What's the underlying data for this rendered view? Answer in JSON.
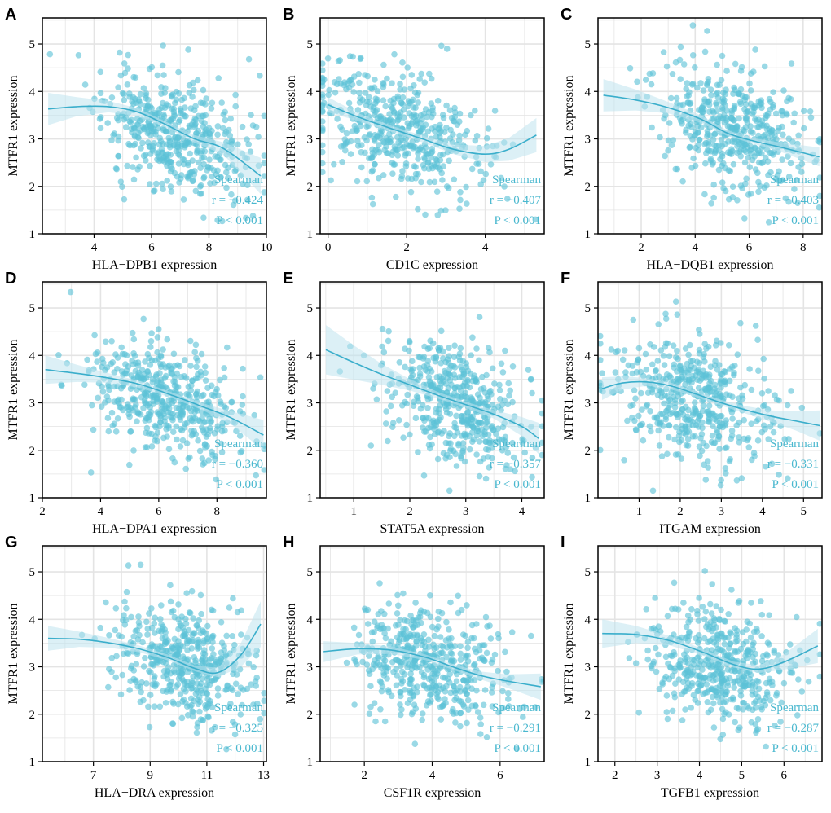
{
  "colors": {
    "point": "#5cc2d6",
    "line": "#3aaecb",
    "band": "#bfe3ef",
    "grid": "#e4e4e4",
    "stat_text": "#4ab8cf"
  },
  "chart_data": [
    {
      "type": "scatter",
      "letter": "A",
      "xlabel": "HLA−DPB1 expression",
      "ylabel": "MTFR1 expression",
      "xlim": [
        2.2,
        10
      ],
      "ylim": [
        1,
        5.55
      ],
      "xticks": [
        4,
        6,
        8,
        10
      ],
      "yticks": [
        1,
        2,
        3,
        4,
        5
      ],
      "center": [
        6.8,
        3.1
      ],
      "spread": [
        1.25,
        0.6
      ],
      "slope": -0.19,
      "n": 480,
      "seed": 11,
      "fit_x": [
        2.4,
        3.4,
        4.5,
        5.5,
        6.5,
        7.5,
        8.5,
        9.8
      ],
      "fit_y": [
        3.63,
        3.68,
        3.68,
        3.57,
        3.3,
        3.0,
        2.8,
        2.22
      ],
      "band": [
        0.34,
        0.2,
        0.12,
        0.08,
        0.06,
        0.08,
        0.13,
        0.38
      ],
      "stat": {
        "method": "Spearman",
        "r": "r = −0.424",
        "p": "P < 0.001"
      }
    },
    {
      "type": "scatter",
      "letter": "B",
      "xlabel": "CD1C expression",
      "ylabel": "MTFR1 expression",
      "xlim": [
        -0.2,
        5.5
      ],
      "ylim": [
        1,
        5.55
      ],
      "xticks": [
        0,
        2,
        4
      ],
      "yticks": [
        1,
        2,
        3,
        4,
        5
      ],
      "center": [
        1.7,
        3.2
      ],
      "spread": [
        1.05,
        0.62
      ],
      "slope": -0.25,
      "n": 480,
      "seed": 23,
      "fit_x": [
        0,
        0.8,
        1.6,
        2.4,
        3.2,
        4.0,
        4.6,
        5.3
      ],
      "fit_y": [
        3.72,
        3.45,
        3.22,
        3.0,
        2.78,
        2.68,
        2.78,
        3.08
      ],
      "band": [
        0.16,
        0.08,
        0.06,
        0.07,
        0.1,
        0.17,
        0.24,
        0.36
      ],
      "stat": {
        "method": "Spearman",
        "r": "r = −0.407",
        "p": "P < 0.001"
      }
    },
    {
      "type": "scatter",
      "letter": "C",
      "xlabel": "HLA−DQB1 expression",
      "ylabel": "MTFR1 expression",
      "xlim": [
        0.4,
        8.7
      ],
      "ylim": [
        1,
        5.55
      ],
      "xticks": [
        2,
        4,
        6,
        8
      ],
      "yticks": [
        1,
        2,
        3,
        4,
        5
      ],
      "center": [
        5.5,
        3.2
      ],
      "spread": [
        1.35,
        0.62
      ],
      "slope": -0.17,
      "n": 480,
      "seed": 37,
      "fit_x": [
        0.6,
        1.8,
        3.0,
        4.2,
        5.2,
        6.2,
        7.2,
        8.6
      ],
      "fit_y": [
        3.92,
        3.82,
        3.66,
        3.42,
        3.12,
        2.95,
        2.82,
        2.62
      ],
      "band": [
        0.34,
        0.22,
        0.12,
        0.08,
        0.06,
        0.06,
        0.1,
        0.2
      ],
      "stat": {
        "method": "Spearman",
        "r": "r = −0.403",
        "p": "P < 0.001"
      }
    },
    {
      "type": "scatter",
      "letter": "D",
      "xlabel": "HLA−DPA1 expression",
      "ylabel": "MTFR1 expression",
      "xlim": [
        2,
        9.7
      ],
      "ylim": [
        1,
        5.55
      ],
      "xticks": [
        2,
        4,
        6,
        8
      ],
      "yticks": [
        1,
        2,
        3,
        4,
        5
      ],
      "center": [
        6.3,
        3.1
      ],
      "spread": [
        1.3,
        0.6
      ],
      "slope": -0.17,
      "n": 480,
      "seed": 41,
      "fit_x": [
        2.1,
        3.2,
        4.3,
        5.4,
        6.5,
        7.5,
        8.5,
        9.6
      ],
      "fit_y": [
        3.7,
        3.62,
        3.52,
        3.38,
        3.15,
        2.92,
        2.68,
        2.32
      ],
      "band": [
        0.3,
        0.18,
        0.1,
        0.07,
        0.06,
        0.07,
        0.14,
        0.32
      ],
      "stat": {
        "method": "Spearman",
        "r": "r = −0.360",
        "p": "P < 0.001"
      }
    },
    {
      "type": "scatter",
      "letter": "E",
      "xlabel": "STAT5A expression",
      "ylabel": "MTFR1 expression",
      "xlim": [
        0.4,
        4.4
      ],
      "ylim": [
        1,
        5.55
      ],
      "xticks": [
        1,
        2,
        3,
        4
      ],
      "yticks": [
        1,
        2,
        3,
        4,
        5
      ],
      "center": [
        2.8,
        3.0
      ],
      "spread": [
        0.6,
        0.62
      ],
      "slope": -0.45,
      "n": 480,
      "seed": 53,
      "fit_x": [
        0.5,
        1.0,
        1.5,
        2.0,
        2.5,
        3.0,
        3.5,
        4.0,
        4.3
      ],
      "fit_y": [
        4.12,
        3.85,
        3.6,
        3.38,
        3.16,
        2.96,
        2.76,
        2.5,
        2.25
      ],
      "band": [
        0.52,
        0.36,
        0.22,
        0.12,
        0.07,
        0.06,
        0.09,
        0.2,
        0.33
      ],
      "stat": {
        "method": "Spearman",
        "r": "r = −0.357",
        "p": "P < 0.001"
      }
    },
    {
      "type": "scatter",
      "letter": "F",
      "xlabel": "ITGAM expression",
      "ylabel": "MTFR1 expression",
      "xlim": [
        0,
        5.45
      ],
      "ylim": [
        1,
        5.55
      ],
      "xticks": [
        1,
        2,
        3,
        4,
        5
      ],
      "yticks": [
        1,
        2,
        3,
        4,
        5
      ],
      "center": [
        2.3,
        3.1
      ],
      "spread": [
        1.0,
        0.62
      ],
      "slope": -0.15,
      "n": 480,
      "seed": 67,
      "fit_x": [
        0.1,
        0.6,
        1.2,
        1.8,
        2.4,
        3.0,
        3.6,
        4.2,
        4.8,
        5.4
      ],
      "fit_y": [
        3.3,
        3.42,
        3.44,
        3.35,
        3.18,
        3.0,
        2.85,
        2.72,
        2.62,
        2.52
      ],
      "band": [
        0.24,
        0.14,
        0.08,
        0.07,
        0.06,
        0.06,
        0.08,
        0.12,
        0.2,
        0.32
      ],
      "stat": {
        "method": "Spearman",
        "r": "r = −0.331",
        "p": "P < 0.001"
      }
    },
    {
      "type": "scatter",
      "letter": "G",
      "xlabel": "HLA−DRA expression",
      "ylabel": "MTFR1 expression",
      "xlim": [
        5.2,
        13.1
      ],
      "ylim": [
        1,
        5.55
      ],
      "xticks": [
        7,
        9,
        11,
        13
      ],
      "yticks": [
        1,
        2,
        3,
        4,
        5
      ],
      "center": [
        10.2,
        3.1
      ],
      "spread": [
        1.25,
        0.6
      ],
      "slope": -0.14,
      "n": 480,
      "seed": 79,
      "fit_x": [
        5.4,
        6.5,
        7.6,
        8.6,
        9.6,
        10.6,
        11.4,
        12.2,
        12.9
      ],
      "fit_y": [
        3.6,
        3.58,
        3.5,
        3.38,
        3.2,
        2.96,
        2.88,
        3.25,
        3.9
      ],
      "band": [
        0.26,
        0.16,
        0.1,
        0.07,
        0.06,
        0.06,
        0.1,
        0.25,
        0.48
      ],
      "stat": {
        "method": "Spearman",
        "r": "r = −0.325",
        "p": "P < 0.001"
      }
    },
    {
      "type": "scatter",
      "letter": "H",
      "xlabel": "CSF1R expression",
      "ylabel": "MTFR1 expression",
      "xlim": [
        0.7,
        7.3
      ],
      "ylim": [
        1,
        5.55
      ],
      "xticks": [
        2,
        4,
        6
      ],
      "yticks": [
        1,
        2,
        3,
        4,
        5
      ],
      "center": [
        3.9,
        3.1
      ],
      "spread": [
        1.15,
        0.62
      ],
      "slope": -0.12,
      "n": 480,
      "seed": 83,
      "fit_x": [
        0.8,
        1.8,
        2.8,
        3.8,
        4.6,
        5.4,
        6.2,
        7.2
      ],
      "fit_y": [
        3.32,
        3.38,
        3.35,
        3.2,
        3.0,
        2.82,
        2.7,
        2.58
      ],
      "band": [
        0.22,
        0.12,
        0.08,
        0.06,
        0.06,
        0.08,
        0.14,
        0.28
      ],
      "stat": {
        "method": "Spearman",
        "r": "r = −0.291",
        "p": "P < 0.001"
      }
    },
    {
      "type": "scatter",
      "letter": "I",
      "xlabel": "TGFB1 expression",
      "ylabel": "MTFR1 expression",
      "xlim": [
        1.6,
        6.9
      ],
      "ylim": [
        1,
        5.55
      ],
      "xticks": [
        2,
        3,
        4,
        5,
        6
      ],
      "yticks": [
        1,
        2,
        3,
        4,
        5
      ],
      "center": [
        4.5,
        3.0
      ],
      "spread": [
        0.85,
        0.62
      ],
      "slope": -0.22,
      "n": 480,
      "seed": 97,
      "fit_x": [
        1.7,
        2.5,
        3.3,
        4.1,
        4.8,
        5.4,
        6.0,
        6.8
      ],
      "fit_y": [
        3.7,
        3.68,
        3.55,
        3.3,
        3.05,
        2.95,
        3.1,
        3.44
      ],
      "band": [
        0.3,
        0.18,
        0.1,
        0.07,
        0.06,
        0.08,
        0.16,
        0.36
      ],
      "stat": {
        "method": "Spearman",
        "r": "r = −0.287",
        "p": "P < 0.001"
      }
    }
  ]
}
